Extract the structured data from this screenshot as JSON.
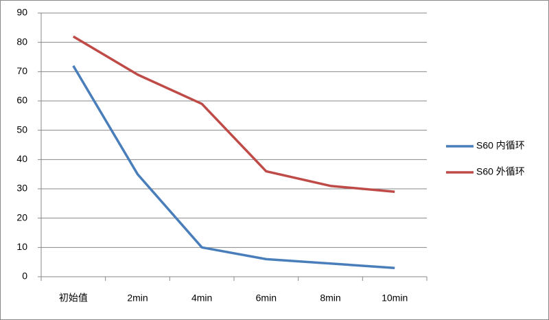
{
  "chart_data": {
    "type": "line",
    "categories": [
      "初始值",
      "2min",
      "4min",
      "6min",
      "8min",
      "10min"
    ],
    "series": [
      {
        "name": "S60 内循环",
        "color": "#4a7ebb",
        "values": [
          72,
          35,
          10,
          6,
          4.5,
          3
        ]
      },
      {
        "name": "S60 外循环",
        "color": "#be4b48",
        "values": [
          82,
          69,
          59,
          36,
          31,
          29
        ]
      }
    ],
    "ylim": [
      0,
      90
    ],
    "yticks": [
      0,
      10,
      20,
      30,
      40,
      50,
      60,
      70,
      80,
      90
    ],
    "grid": true,
    "legend": "right"
  }
}
